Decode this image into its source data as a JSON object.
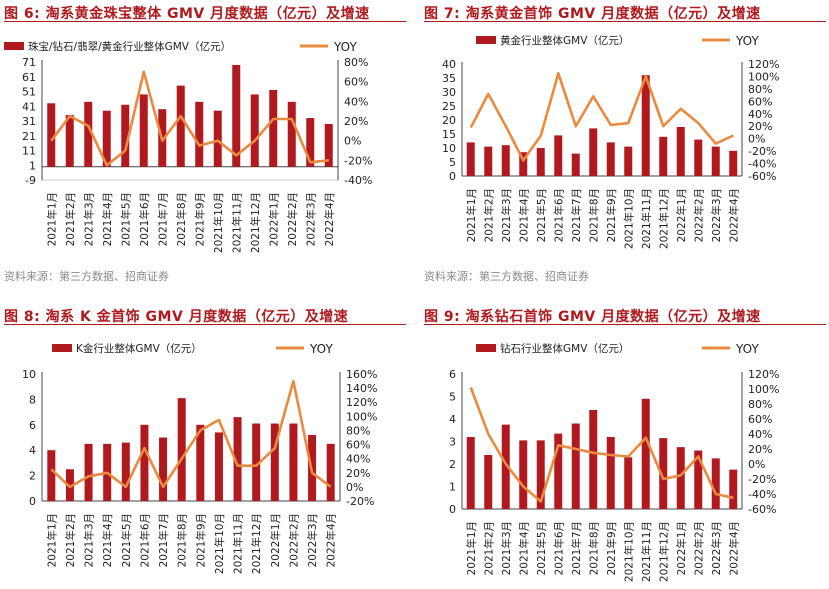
{
  "page": {
    "source_text": "资料来源：第三方数据、招商证券"
  },
  "colors": {
    "bar": "#b0191e",
    "line": "#e98a3f",
    "title": "#b0191e",
    "axis": "#444444"
  },
  "months": [
    "2021年1月",
    "2021年2月",
    "2021年3月",
    "2021年4月",
    "2021年5月",
    "2021年6月",
    "2021年7月",
    "2021年8月",
    "2021年9月",
    "2021年10月",
    "2021年11月",
    "2021年12月",
    "2022年1月",
    "2022年2月",
    "2022年3月",
    "2022年4月"
  ],
  "chart_data": [
    {
      "type": "bar",
      "title": "图 6: 淘系黄金珠宝整体 GMV 月度数据（亿元）及增速",
      "legend": {
        "bar": "珠宝/钻石/翡翠/黄金行业整体GMV（亿元）",
        "line": "YOY"
      },
      "values": [
        43,
        35,
        44,
        38,
        42,
        49,
        39,
        55,
        44,
        38,
        69,
        49,
        52,
        44,
        33,
        29
      ],
      "yoy": [
        0,
        25,
        15,
        -25,
        -10,
        70,
        0,
        25,
        -5,
        0,
        -15,
        0,
        22,
        22,
        -22,
        -20
      ],
      "left_axis": {
        "min": -9,
        "max": 71,
        "ticks": [
          71,
          61,
          51,
          41,
          31,
          21,
          11,
          1,
          -9
        ]
      },
      "right_axis": {
        "min": -40,
        "max": 80,
        "ticks": [
          "80%",
          "60%",
          "40%",
          "20%",
          "0%",
          "-20%",
          "-40%"
        ],
        "values": [
          80,
          60,
          40,
          20,
          0,
          -20,
          -40
        ]
      }
    },
    {
      "type": "bar",
      "title": "图 7: 淘系黄金首饰 GMV 月度数据（亿元）及增速",
      "legend": {
        "bar": "黄金行业整体GMV（亿元）",
        "line": "YOY"
      },
      "values": [
        12,
        10.5,
        11,
        8.5,
        10,
        14.5,
        8,
        17,
        12,
        10.5,
        36,
        14,
        17.5,
        13,
        10.5,
        9
      ],
      "yoy": [
        18,
        72,
        20,
        -35,
        5,
        105,
        20,
        68,
        22,
        25,
        100,
        20,
        48,
        25,
        -8,
        5
      ],
      "left_axis": {
        "min": 0,
        "max": 40,
        "ticks": [
          40,
          35,
          30,
          25,
          20,
          15,
          10,
          5,
          0
        ]
      },
      "right_axis": {
        "min": -60,
        "max": 120,
        "ticks": [
          "120%",
          "100%",
          "80%",
          "60%",
          "40%",
          "20%",
          "0%",
          "-20%",
          "-40%",
          "-60%"
        ],
        "values": [
          120,
          100,
          80,
          60,
          40,
          20,
          0,
          -20,
          -40,
          -60
        ]
      }
    },
    {
      "type": "bar",
      "title": "图 8: 淘系 K 金首饰 GMV 月度数据（亿元）及增速",
      "legend": {
        "bar": "K金行业整体GMV（亿元）",
        "line": "YOY"
      },
      "values": [
        4,
        2.5,
        4.5,
        4.5,
        4.6,
        6,
        5,
        8.1,
        6,
        5.4,
        6.6,
        6.1,
        6.1,
        6.1,
        5.2,
        4.5
      ],
      "yoy": [
        25,
        0,
        15,
        20,
        0,
        55,
        0,
        40,
        80,
        95,
        30,
        30,
        55,
        150,
        20,
        0
      ],
      "left_axis": {
        "min": 0,
        "max": 10,
        "ticks": [
          10,
          8,
          6,
          4,
          2,
          0
        ]
      },
      "right_axis": {
        "min": -20,
        "max": 160,
        "ticks": [
          "160%",
          "140%",
          "120%",
          "100%",
          "80%",
          "60%",
          "40%",
          "20%",
          "0%",
          "-20%"
        ],
        "values": [
          160,
          140,
          120,
          100,
          80,
          60,
          40,
          20,
          0,
          -20
        ]
      }
    },
    {
      "type": "bar",
      "title": "图 9: 淘系钻石首饰 GMV 月度数据（亿元）及增速",
      "legend": {
        "bar": "钻石行业整体GMV（亿元）",
        "line": "YOY"
      },
      "values": [
        3.2,
        2.4,
        3.75,
        3.05,
        3.05,
        3.35,
        3.8,
        4.4,
        3.2,
        2.3,
        4.9,
        3.15,
        2.75,
        2.6,
        2.25,
        1.75
      ],
      "yoy": [
        102,
        40,
        0,
        -30,
        -50,
        25,
        20,
        15,
        12,
        10,
        35,
        -20,
        -15,
        10,
        -40,
        -45
      ],
      "left_axis": {
        "min": 0,
        "max": 6,
        "ticks": [
          6,
          5,
          4,
          3,
          2,
          1,
          0
        ]
      },
      "right_axis": {
        "min": -60,
        "max": 120,
        "ticks": [
          "120%",
          "100%",
          "80%",
          "60%",
          "40%",
          "20%",
          "0%",
          "-20%",
          "-40%",
          "-60%"
        ],
        "values": [
          120,
          100,
          80,
          60,
          40,
          20,
          0,
          -20,
          -40,
          -60
        ]
      }
    }
  ]
}
